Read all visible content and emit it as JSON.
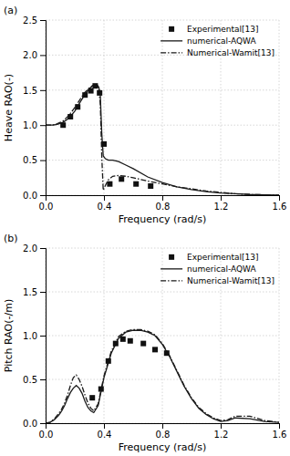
{
  "chart_data": [
    {
      "type": "line",
      "title": "(a)",
      "x_label": "Frequency (rad/s)",
      "y_label": "Heave RAO(-)",
      "xlim": [
        0,
        1.6
      ],
      "ylim": [
        0,
        2.5
      ],
      "xticks": [
        {
          "value": 0,
          "label": "0.0"
        },
        0.4,
        0.8,
        1.2,
        1.6
      ],
      "yticks": [
        {
          "value": 0,
          "label": "0.0"
        },
        0.5,
        {
          "value": 1,
          "label": "1.0"
        },
        1.5,
        {
          "value": 2,
          "label": "2.0"
        },
        2.5
      ],
      "grid": true,
      "legend": "upper right",
      "series": [
        {
          "name": "Experimental[13]",
          "type": "scatter",
          "marker": "square",
          "color": "#111111",
          "x": [
            0.12,
            0.17,
            0.22,
            0.27,
            0.31,
            0.34,
            0.37,
            0.4,
            0.44,
            0.52,
            0.62,
            0.72
          ],
          "values": [
            1.0,
            1.12,
            1.26,
            1.43,
            1.49,
            1.56,
            1.46,
            0.73,
            0.16,
            0.23,
            0.16,
            0.13
          ]
        },
        {
          "name": "numerical-AQWA",
          "type": "line",
          "line_style": "solid",
          "color": "#1a1a1a",
          "x": [
            0.0,
            0.02,
            0.05,
            0.08,
            0.12,
            0.16,
            0.2,
            0.24,
            0.27,
            0.3,
            0.32,
            0.34,
            0.355,
            0.365,
            0.375,
            0.385,
            0.395,
            0.41,
            0.43,
            0.46,
            0.5,
            0.55,
            0.6,
            0.7,
            0.8,
            0.9,
            1.0,
            1.1,
            1.2,
            1.3,
            1.4,
            1.5,
            1.6
          ],
          "values": [
            1.0,
            1.0,
            1.0,
            1.01,
            1.04,
            1.1,
            1.2,
            1.34,
            1.44,
            1.52,
            1.56,
            1.57,
            1.57,
            1.54,
            1.42,
            0.88,
            0.56,
            0.52,
            0.5,
            0.5,
            0.48,
            0.43,
            0.38,
            0.26,
            0.18,
            0.12,
            0.08,
            0.05,
            0.03,
            0.02,
            0.01,
            0.005,
            0.0
          ]
        },
        {
          "name": "Numerical-Wamit[13]",
          "type": "line",
          "line_style": "dashdot",
          "color": "#1a1a1a",
          "x": [
            0.0,
            0.02,
            0.05,
            0.08,
            0.12,
            0.16,
            0.2,
            0.24,
            0.27,
            0.3,
            0.32,
            0.34,
            0.355,
            0.365,
            0.375,
            0.385,
            0.395,
            0.41,
            0.43,
            0.46,
            0.5,
            0.55,
            0.6,
            0.7,
            0.8,
            0.9,
            1.0,
            1.1,
            1.2,
            1.3,
            1.4,
            1.5,
            1.6
          ],
          "values": [
            1.0,
            1.0,
            1.0,
            1.02,
            1.06,
            1.14,
            1.25,
            1.38,
            1.47,
            1.53,
            1.56,
            1.57,
            1.56,
            1.52,
            1.3,
            0.55,
            0.07,
            0.14,
            0.22,
            0.27,
            0.28,
            0.27,
            0.25,
            0.2,
            0.16,
            0.12,
            0.09,
            0.06,
            0.04,
            0.02,
            0.01,
            0.005,
            0.0
          ]
        }
      ]
    },
    {
      "type": "line",
      "title": "(b)",
      "x_label": "Frequency (rad/s)",
      "y_label": "Pitch RAO(-/m)",
      "xlim": [
        0,
        1.6
      ],
      "ylim": [
        0,
        2.0
      ],
      "xticks": [
        {
          "value": 0,
          "label": "0.0"
        },
        0.4,
        0.8,
        1.2,
        1.6
      ],
      "yticks": [
        {
          "value": 0,
          "label": "0.0"
        },
        0.5,
        {
          "value": 1,
          "label": "1.0"
        },
        1.5,
        {
          "value": 2,
          "label": "2.0"
        }
      ],
      "grid": true,
      "legend": "upper right",
      "series": [
        {
          "name": "Experimental[13]",
          "type": "scatter",
          "marker": "square",
          "color": "#111111",
          "x": [
            0.32,
            0.38,
            0.43,
            0.48,
            0.53,
            0.58,
            0.67,
            0.75,
            0.83
          ],
          "values": [
            0.29,
            0.39,
            0.71,
            0.91,
            0.96,
            0.94,
            0.91,
            0.84,
            0.8
          ]
        },
        {
          "name": "numerical-AQWA",
          "type": "line",
          "line_style": "solid",
          "color": "#1a1a1a",
          "x": [
            0.0,
            0.03,
            0.06,
            0.09,
            0.11,
            0.13,
            0.15,
            0.17,
            0.19,
            0.21,
            0.23,
            0.25,
            0.27,
            0.29,
            0.31,
            0.33,
            0.36,
            0.4,
            0.45,
            0.5,
            0.55,
            0.6,
            0.65,
            0.7,
            0.75,
            0.8,
            0.85,
            0.9,
            0.95,
            1.0,
            1.05,
            1.1,
            1.15,
            1.2,
            1.25,
            1.3,
            1.4,
            1.5,
            1.6
          ],
          "values": [
            0.0,
            0.01,
            0.04,
            0.09,
            0.14,
            0.2,
            0.28,
            0.35,
            0.4,
            0.43,
            0.4,
            0.34,
            0.25,
            0.18,
            0.14,
            0.12,
            0.2,
            0.52,
            0.8,
            0.97,
            1.04,
            1.06,
            1.06,
            1.04,
            1.0,
            0.9,
            0.76,
            0.59,
            0.42,
            0.28,
            0.17,
            0.1,
            0.05,
            0.02,
            0.03,
            0.06,
            0.05,
            0.02,
            0.01
          ]
        },
        {
          "name": "Numerical-Wamit[13]",
          "type": "line",
          "line_style": "dashdot",
          "color": "#1a1a1a",
          "x": [
            0.0,
            0.03,
            0.06,
            0.09,
            0.11,
            0.13,
            0.15,
            0.17,
            0.19,
            0.21,
            0.23,
            0.25,
            0.27,
            0.29,
            0.31,
            0.33,
            0.36,
            0.4,
            0.45,
            0.5,
            0.55,
            0.6,
            0.65,
            0.7,
            0.75,
            0.8,
            0.85,
            0.9,
            0.95,
            1.0,
            1.05,
            1.1,
            1.15,
            1.2,
            1.25,
            1.3,
            1.4,
            1.5,
            1.6
          ],
          "values": [
            0.0,
            0.01,
            0.05,
            0.11,
            0.16,
            0.23,
            0.32,
            0.43,
            0.52,
            0.55,
            0.5,
            0.42,
            0.32,
            0.23,
            0.17,
            0.14,
            0.22,
            0.54,
            0.82,
            0.99,
            1.05,
            1.07,
            1.07,
            1.05,
            1.01,
            0.91,
            0.77,
            0.6,
            0.43,
            0.29,
            0.18,
            0.11,
            0.06,
            0.03,
            0.04,
            0.08,
            0.08,
            0.03,
            0.01
          ]
        }
      ]
    }
  ]
}
